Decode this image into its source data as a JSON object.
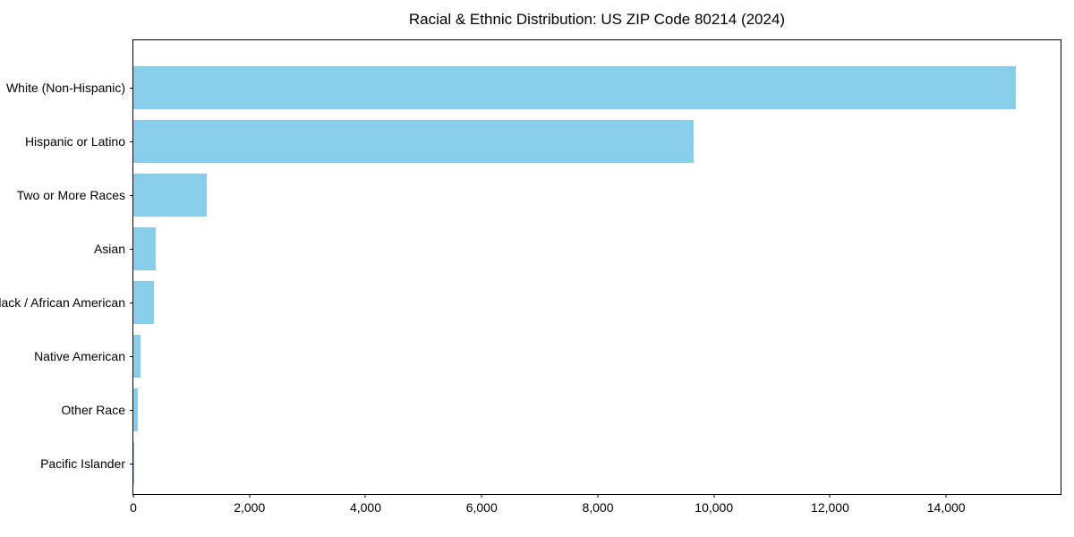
{
  "chart_data": {
    "type": "bar",
    "orientation": "horizontal",
    "title": "Racial & Ethnic Distribution: US ZIP Code 80214 (2024)",
    "categories": [
      "White (Non-Hispanic)",
      "Hispanic or Latino",
      "Two or More Races",
      "Asian",
      "Black / African American",
      "Native American",
      "Other Race",
      "Pacific Islander"
    ],
    "values": [
      15200,
      9650,
      1270,
      380,
      360,
      120,
      75,
      10
    ],
    "xlabel": "",
    "ylabel": "",
    "xlim": [
      0,
      15970
    ],
    "x_ticks": [
      0,
      2000,
      4000,
      6000,
      8000,
      10000,
      12000,
      14000
    ],
    "x_tick_labels": [
      "0",
      "2,000",
      "4,000",
      "6,000",
      "8,000",
      "10,000",
      "12,000",
      "14,000"
    ],
    "grid": false,
    "legend_position": "none",
    "bar_color": "#87CEEB",
    "axis_color": "#000000",
    "text_color": "#000000"
  }
}
